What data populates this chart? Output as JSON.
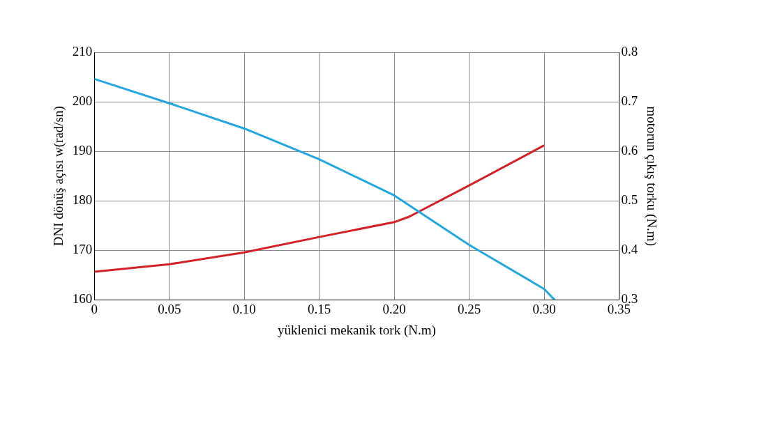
{
  "chart_data": {
    "type": "line",
    "xlabel": "yüklenici mekanik tork (N.m)",
    "ylabel": "DNI dönüş açısı w(rad/sn)",
    "y2label": "motorun çıkış torku (N.m)",
    "xlim": [
      0,
      0.35
    ],
    "xticks": [
      0,
      0.05,
      {
        "value": 0.1,
        "label": "0.10"
      },
      0.15,
      {
        "value": 0.2,
        "label": "0.20"
      },
      0.25,
      {
        "value": 0.3,
        "label": "0.30"
      },
      0.35
    ],
    "ylim": [
      160,
      210
    ],
    "yticks": [
      160,
      170,
      180,
      190,
      200,
      210
    ],
    "y2lim": [
      0.3,
      0.8
    ],
    "y2ticks": [
      0.3,
      0.4,
      0.5,
      0.6,
      0.7,
      0.8
    ],
    "grid": true,
    "legend": false,
    "marker": "none",
    "line_style": "solid",
    "series": [
      {
        "color": "#22a7e0",
        "x": [
          0,
          0.05,
          0.1,
          0.15,
          0.2,
          0.25,
          0.3,
          0.307
        ],
        "values": [
          204.6,
          199.7,
          194.6,
          188.4,
          181.1,
          171.1,
          162.2,
          160
        ]
      },
      {
        "color": "#d42027",
        "axis": "y2",
        "x": [
          0,
          0.05,
          0.1,
          0.15,
          0.2,
          0.21,
          0.25,
          0.3
        ],
        "values": [
          0.357,
          0.372,
          0.396,
          0.427,
          0.457,
          0.468,
          0.531,
          0.612
        ]
      }
    ]
  }
}
